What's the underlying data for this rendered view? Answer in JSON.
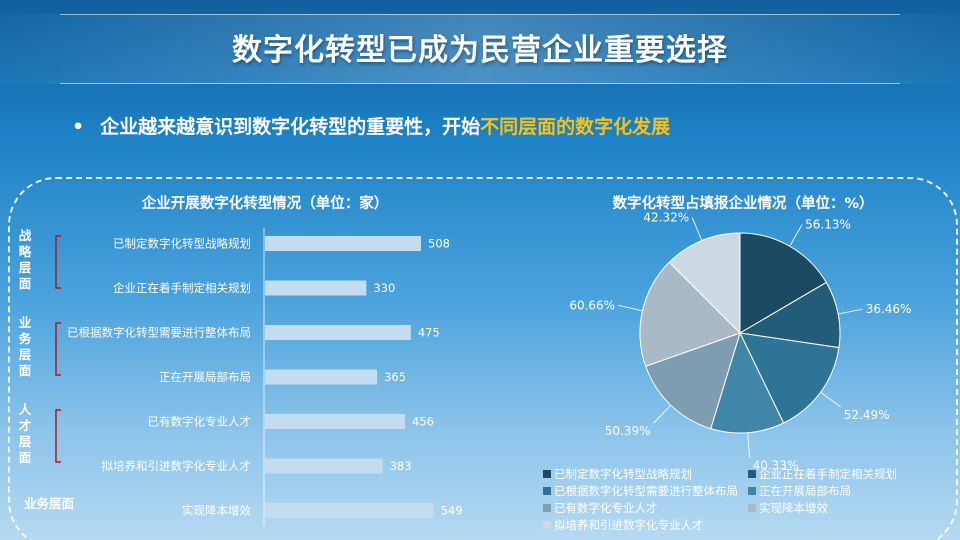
{
  "header": {
    "title": "数字化转型已成为民营企业重要选择"
  },
  "bullet": {
    "dot": "•",
    "text_plain": "企业越来越意识到数字化转型的重要性，开始",
    "text_highlight": "不同层面的数字化发展"
  },
  "colors": {
    "bar": "#c4dcf0",
    "highlight": "#f4c21d",
    "group_bracket": "#b01818"
  },
  "chart_data": [
    {
      "type": "bar",
      "orientation": "horizontal",
      "title": "企业开展数字化转型情况（单位：家）",
      "categories": [
        "已制定数字化转型战略规划",
        "企业正在着手制定相关规划",
        "已根据数字化转型需要进行整体布局",
        "正在开展局部布局",
        "已有数字化专业人才",
        "拟培养和引进数字化专业人才",
        "实现降本增效"
      ],
      "values": [
        508,
        330,
        475,
        365,
        456,
        383,
        549
      ],
      "groups": [
        {
          "label": "战略层面",
          "chars": [
            "战",
            "略",
            "层",
            "面"
          ],
          "bracket": true
        },
        {
          "label": "业务层面",
          "chars": [
            "业",
            "务",
            "层",
            "面"
          ],
          "bracket": true
        },
        {
          "label": "人才层面",
          "chars": [
            "人",
            "才",
            "层",
            "面"
          ],
          "bracket": true
        },
        {
          "label": "业务层面",
          "chars": [
            "业务层面"
          ],
          "bracket": false
        }
      ],
      "data_labels": true
    },
    {
      "type": "pie",
      "title": "数字化转型占填报企业情况（单位：%）",
      "labels": [
        "已制定数字化转型战略规划",
        "企业正在着手制定相关规划",
        "已根据数字化转型需要进行整体布局",
        "正在开展局部布局",
        "已有数字化专业人才",
        "实现降本增效",
        "拟培养和引进数字化专业人才"
      ],
      "values": [
        56.13,
        36.46,
        52.49,
        40.33,
        50.39,
        60.66,
        42.32
      ],
      "value_labels": [
        "56.13%",
        "36.46%",
        "52.49%",
        "40.33%",
        "50.39%",
        "60.66%",
        "42.32%"
      ],
      "colors": [
        "#1b4a62",
        "#235c78",
        "#2e7496",
        "#3f86a8",
        "#7f9db1",
        "#a9bac6",
        "#cdd9e2"
      ],
      "legend_position": "bottom"
    }
  ]
}
